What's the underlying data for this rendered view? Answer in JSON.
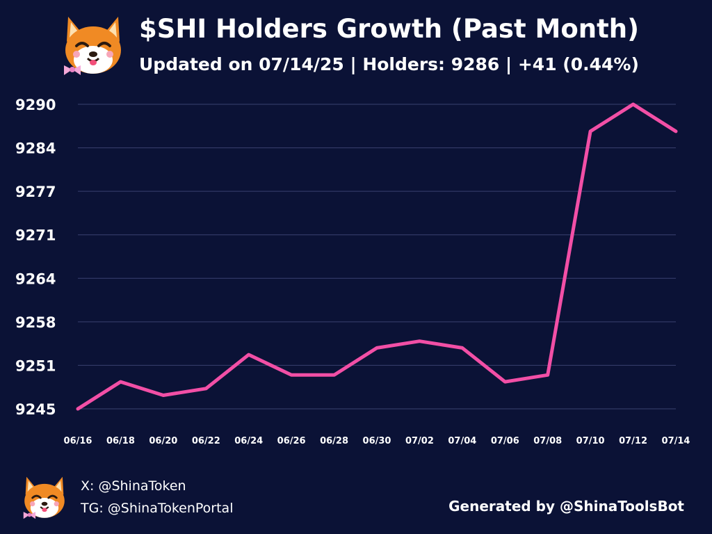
{
  "header": {
    "title": "$SHI Holders Growth (Past Month)",
    "subtitle": "Updated on 07/14/25 | Holders: 9286 | +41 (0.44%)"
  },
  "footer": {
    "x_handle": "X: @ShinaToken",
    "tg_handle": "TG: @ShinaTokenPortal",
    "generated_by": "Generated by @ShinaToolsBot"
  },
  "colors": {
    "background": "#0b1236",
    "line": "#f24fa6",
    "grid": "#3a4170",
    "text": "#ffffff"
  },
  "icons": {
    "logo": "shiba-inu-mascot-icon"
  },
  "chart_data": {
    "type": "line",
    "title": "$SHI Holders Growth (Past Month)",
    "xlabel": "",
    "ylabel": "",
    "x": [
      "06/16",
      "06/17",
      "06/18",
      "06/19",
      "06/20",
      "06/21",
      "06/22",
      "06/23",
      "06/24",
      "06/25",
      "06/26",
      "06/27",
      "06/28",
      "06/29",
      "06/30",
      "07/01",
      "07/02",
      "07/03",
      "07/04",
      "07/05",
      "07/06",
      "07/07",
      "07/08",
      "07/09",
      "07/10",
      "07/11",
      "07/12",
      "07/13",
      "07/14"
    ],
    "x_tick_labels": [
      "06/16",
      "06/18",
      "06/20",
      "06/22",
      "06/24",
      "06/26",
      "06/28",
      "06/30",
      "07/02",
      "07/04",
      "07/06",
      "07/08",
      "07/10",
      "07/12",
      "07/14"
    ],
    "y_tick_labels": [
      "9290",
      "9284",
      "9277",
      "9271",
      "9264",
      "9258",
      "9251",
      "9245"
    ],
    "series": [
      {
        "values": [
          9245,
          null,
          9249,
          null,
          9247,
          null,
          9248,
          null,
          9253,
          null,
          9250,
          null,
          9250,
          null,
          9254,
          null,
          9255,
          null,
          9254,
          null,
          9249,
          null,
          9250,
          null,
          9286,
          null,
          9290,
          null,
          9286
        ]
      }
    ],
    "ylim": [
      9245,
      9290
    ],
    "grid": true,
    "legend": "none"
  }
}
